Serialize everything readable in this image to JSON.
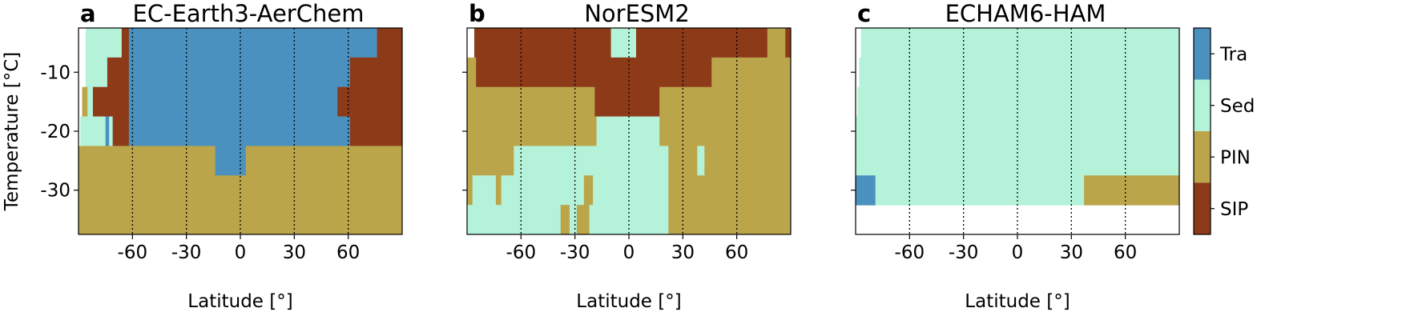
{
  "chart_data": [
    {
      "type": "heatmap",
      "panel_label": "a",
      "title": "EC-Earth3-AerChem",
      "xlabel": "Latitude [°]",
      "ylabel": "Temperature [°C]",
      "show_ytick_labels": true,
      "xlim": [
        -90,
        90
      ],
      "ylim": [
        -37.5,
        -2.5
      ],
      "xticks": [
        -60,
        -30,
        0,
        30,
        60
      ],
      "yticks": [
        -10,
        -20,
        -30
      ],
      "grid": true,
      "temperature_edges": [
        -2.5,
        -7.5,
        -12.5,
        -17.5,
        -22.5,
        -27.5,
        -32.5,
        -37.5
      ],
      "rows": [
        {
          "edges": [
            -86,
            -66,
            -62,
            76,
            90
          ],
          "classes": [
            "Sed",
            "SIP",
            "Tra",
            "SIP"
          ]
        },
        {
          "edges": [
            -86,
            -74,
            -62,
            61,
            90
          ],
          "classes": [
            "Sed",
            "SIP",
            "Tra",
            "SIP"
          ]
        },
        {
          "edges": [
            -88,
            -85,
            -82,
            -62,
            54,
            90
          ],
          "classes": [
            "PIN",
            "Sed",
            "SIP",
            "Tra",
            "SIP"
          ]
        },
        {
          "edges": [
            -89,
            -75,
            -73,
            -71,
            -62,
            61,
            90
          ],
          "classes": [
            "Sed",
            "Tra",
            "Sed",
            "SIP",
            "Tra",
            "SIP"
          ]
        },
        {
          "edges": [
            -90,
            -14,
            3,
            90
          ],
          "classes": [
            "PIN",
            "Tra",
            "PIN"
          ]
        },
        {
          "edges": [
            -90,
            90
          ],
          "classes": [
            "PIN"
          ]
        },
        {
          "edges": [
            -90,
            90
          ],
          "classes": [
            "PIN"
          ]
        }
      ]
    },
    {
      "type": "heatmap",
      "panel_label": "b",
      "title": "NorESM2",
      "xlabel": "Latitude [°]",
      "show_ytick_labels": false,
      "xlim": [
        -90,
        90
      ],
      "ylim": [
        -37.5,
        -2.5
      ],
      "xticks": [
        -60,
        -30,
        0,
        30,
        60
      ],
      "yticks": [
        -10,
        -20,
        -30
      ],
      "grid": true,
      "temperature_edges": [
        -2.5,
        -7.5,
        -12.5,
        -17.5,
        -22.5,
        -27.5,
        -32.5,
        -37.5
      ],
      "rows": [
        {
          "edges": [
            -86,
            -10,
            4,
            77,
            87,
            90
          ],
          "classes": [
            "SIP",
            "Sed",
            "SIP",
            "PIN",
            "SIP"
          ]
        },
        {
          "edges": [
            -90,
            -85,
            46,
            90
          ],
          "classes": [
            "PIN",
            "SIP",
            "PIN"
          ]
        },
        {
          "edges": [
            -90,
            -19,
            17,
            90
          ],
          "classes": [
            "PIN",
            "SIP",
            "PIN"
          ]
        },
        {
          "edges": [
            -90,
            -18,
            17,
            90
          ],
          "classes": [
            "PIN",
            "Sed",
            "PIN"
          ]
        },
        {
          "edges": [
            -90,
            -64,
            22,
            38,
            42,
            90
          ],
          "classes": [
            "PIN",
            "Sed",
            "PIN",
            "Sed",
            "PIN"
          ]
        },
        {
          "edges": [
            -90,
            -87,
            -74,
            -71,
            -25,
            -20,
            22,
            90
          ],
          "classes": [
            "PIN",
            "Sed",
            "PIN",
            "Sed",
            "PIN",
            "Sed",
            "PIN"
          ]
        },
        {
          "edges": [
            -90,
            -38,
            -33,
            -29,
            -22,
            -18,
            22,
            90
          ],
          "classes": [
            "Sed",
            "PIN",
            "Sed",
            "PIN",
            "Sed",
            "Sed",
            "PIN"
          ]
        }
      ]
    },
    {
      "type": "heatmap",
      "panel_label": "c",
      "title": "ECHAM6-HAM",
      "xlabel": "Latitude [°]",
      "show_ytick_labels": false,
      "xlim": [
        -90,
        90
      ],
      "ylim": [
        -37.5,
        -2.5
      ],
      "xticks": [
        -60,
        -30,
        0,
        30,
        60
      ],
      "yticks": [
        -10,
        -20,
        -30
      ],
      "grid": true,
      "temperature_edges": [
        -2.5,
        -7.5,
        -12.5,
        -17.5,
        -22.5,
        -27.5,
        -32.5,
        -37.5
      ],
      "rows": [
        {
          "edges": [
            -87,
            90
          ],
          "classes": [
            "Sed"
          ]
        },
        {
          "edges": [
            -88,
            90
          ],
          "classes": [
            "Sed"
          ]
        },
        {
          "edges": [
            -89,
            90
          ],
          "classes": [
            "Sed"
          ]
        },
        {
          "edges": [
            -90,
            90
          ],
          "classes": [
            "Sed"
          ]
        },
        {
          "edges": [
            -90,
            90
          ],
          "classes": [
            "Sed"
          ]
        },
        {
          "edges": [
            -90,
            -79,
            37,
            90
          ],
          "classes": [
            "Tra",
            "Sed",
            "PIN"
          ]
        },
        {
          "edges": [],
          "classes": []
        }
      ]
    }
  ],
  "legend": {
    "classes": [
      "Tra",
      "Sed",
      "PIN",
      "SIP"
    ],
    "colors": [
      "#4a91c0",
      "#b4f3d9",
      "#bba54b",
      "#8d3a19"
    ]
  }
}
